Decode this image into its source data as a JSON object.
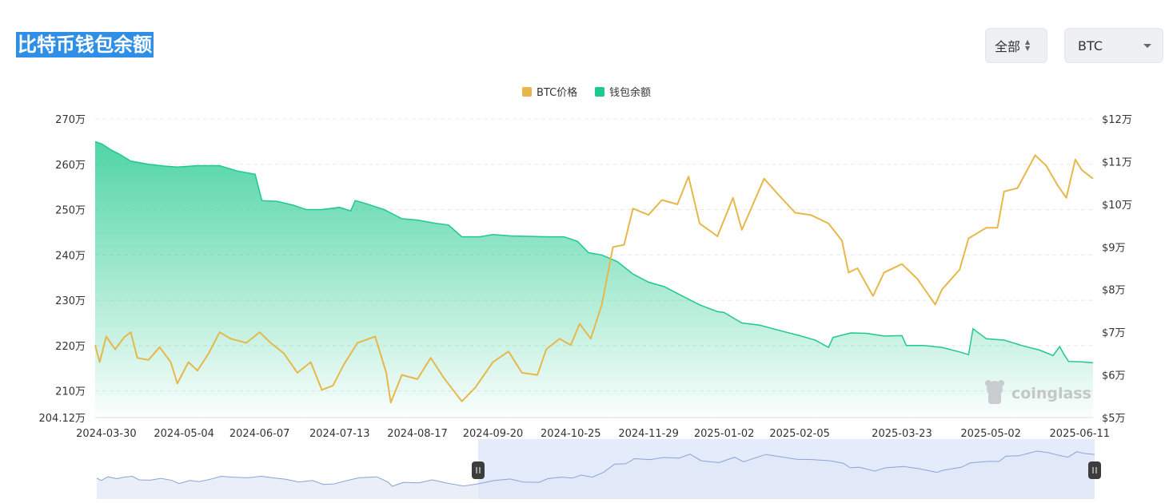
{
  "page": {
    "title": "比特币钱包余额",
    "range_select": {
      "value": "全部"
    },
    "coin_select": {
      "value": "BTC"
    },
    "watermark": "coinglass"
  },
  "colors": {
    "price": "#e6b84a",
    "balance": "#1ec98b",
    "title_bg": "#2f8fe6",
    "navigator_fill": "#dbe5fb"
  },
  "chart_data": {
    "type": "area",
    "legend": [
      "BTC价格",
      "钱包余额"
    ],
    "legend_position": "top-center",
    "grid": true,
    "x_ticks": [
      "2024-03-30",
      "2024-05-04",
      "2024-06-07",
      "2024-07-13",
      "2024-08-17",
      "2024-09-20",
      "2024-10-25",
      "2024-11-29",
      "2025-01-02",
      "2025-02-05",
      "2025-03-23",
      "2025-05-02",
      "2025-06-11"
    ],
    "y_left": {
      "ticks": [
        "270万",
        "260万",
        "250万",
        "240万",
        "230万",
        "220万",
        "210万",
        "204.12万"
      ],
      "min": 2041200,
      "max": 2700000
    },
    "y_right": {
      "ticks": [
        "$12万",
        "$11万",
        "$10万",
        "$9万",
        "$8万",
        "$7万",
        "$6万",
        "$5万"
      ],
      "min": 50000,
      "max": 120000
    },
    "x_range": [
      "2024-03-25",
      "2025-06-17"
    ],
    "series": [
      {
        "name": "钱包余额",
        "type": "area",
        "axis": "left",
        "points": [
          [
            "2024-03-25",
            2650000
          ],
          [
            "2024-03-28",
            2645000
          ],
          [
            "2024-04-01",
            2632000
          ],
          [
            "2024-04-05",
            2622000
          ],
          [
            "2024-04-10",
            2607000
          ],
          [
            "2024-04-18",
            2600000
          ],
          [
            "2024-04-25",
            2596000
          ],
          [
            "2024-05-01",
            2594000
          ],
          [
            "2024-05-10",
            2597000
          ],
          [
            "2024-05-20",
            2597000
          ],
          [
            "2024-05-28",
            2585000
          ],
          [
            "2024-06-05",
            2578000
          ],
          [
            "2024-06-08",
            2520000
          ],
          [
            "2024-06-15",
            2518000
          ],
          [
            "2024-06-22",
            2510000
          ],
          [
            "2024-06-28",
            2500000
          ],
          [
            "2024-07-05",
            2500000
          ],
          [
            "2024-07-13",
            2505000
          ],
          [
            "2024-07-18",
            2497000
          ],
          [
            "2024-07-20",
            2520000
          ],
          [
            "2024-07-25",
            2513000
          ],
          [
            "2024-08-02",
            2500000
          ],
          [
            "2024-08-10",
            2480000
          ],
          [
            "2024-08-17",
            2477000
          ],
          [
            "2024-08-25",
            2470000
          ],
          [
            "2024-08-31",
            2466000
          ],
          [
            "2024-09-06",
            2440000
          ],
          [
            "2024-09-14",
            2440000
          ],
          [
            "2024-09-20",
            2445000
          ],
          [
            "2024-09-28",
            2442000
          ],
          [
            "2024-10-05",
            2441000
          ],
          [
            "2024-10-15",
            2440000
          ],
          [
            "2024-10-22",
            2440000
          ],
          [
            "2024-10-28",
            2430000
          ],
          [
            "2024-11-02",
            2405000
          ],
          [
            "2024-11-08",
            2400000
          ],
          [
            "2024-11-15",
            2385000
          ],
          [
            "2024-11-22",
            2358000
          ],
          [
            "2024-11-29",
            2340000
          ],
          [
            "2024-12-06",
            2330000
          ],
          [
            "2024-12-14",
            2310000
          ],
          [
            "2024-12-22",
            2290000
          ],
          [
            "2024-12-30",
            2275000
          ],
          [
            "2025-01-02",
            2273000
          ],
          [
            "2025-01-10",
            2250000
          ],
          [
            "2025-01-18",
            2245000
          ],
          [
            "2025-01-28",
            2232000
          ],
          [
            "2025-02-05",
            2222000
          ],
          [
            "2025-02-12",
            2212000
          ],
          [
            "2025-02-18",
            2196000
          ],
          [
            "2025-02-20",
            2218000
          ],
          [
            "2025-02-28",
            2228000
          ],
          [
            "2025-03-07",
            2227000
          ],
          [
            "2025-03-15",
            2221000
          ],
          [
            "2025-03-23",
            2222000
          ],
          [
            "2025-03-25",
            2200000
          ],
          [
            "2025-04-02",
            2200000
          ],
          [
            "2025-04-10",
            2196000
          ],
          [
            "2025-04-18",
            2186000
          ],
          [
            "2025-04-22",
            2180000
          ],
          [
            "2025-04-24",
            2237000
          ],
          [
            "2025-04-30",
            2215000
          ],
          [
            "2025-05-08",
            2212000
          ],
          [
            "2025-05-16",
            2200000
          ],
          [
            "2025-05-24",
            2190000
          ],
          [
            "2025-05-30",
            2178000
          ],
          [
            "2025-06-02",
            2198000
          ],
          [
            "2025-06-04",
            2180000
          ],
          [
            "2025-06-06",
            2165000
          ],
          [
            "2025-06-12",
            2164000
          ],
          [
            "2025-06-17",
            2162000
          ]
        ]
      },
      {
        "name": "BTC价格",
        "type": "line",
        "axis": "right",
        "points": [
          [
            "2024-03-25",
            67000
          ],
          [
            "2024-03-27",
            63000
          ],
          [
            "2024-03-30",
            69000
          ],
          [
            "2024-04-03",
            66000
          ],
          [
            "2024-04-07",
            68800
          ],
          [
            "2024-04-10",
            70000
          ],
          [
            "2024-04-13",
            64000
          ],
          [
            "2024-04-18",
            63500
          ],
          [
            "2024-04-23",
            66500
          ],
          [
            "2024-04-28",
            63000
          ],
          [
            "2024-05-01",
            58000
          ],
          [
            "2024-05-06",
            63000
          ],
          [
            "2024-05-10",
            61000
          ],
          [
            "2024-05-15",
            65000
          ],
          [
            "2024-05-20",
            70000
          ],
          [
            "2024-05-25",
            68500
          ],
          [
            "2024-06-01",
            67500
          ],
          [
            "2024-06-07",
            70000
          ],
          [
            "2024-06-12",
            67500
          ],
          [
            "2024-06-18",
            65000
          ],
          [
            "2024-06-24",
            60500
          ],
          [
            "2024-06-30",
            63000
          ],
          [
            "2024-07-05",
            56500
          ],
          [
            "2024-07-10",
            57500
          ],
          [
            "2024-07-15",
            62500
          ],
          [
            "2024-07-21",
            67500
          ],
          [
            "2024-07-29",
            69000
          ],
          [
            "2024-08-03",
            60500
          ],
          [
            "2024-08-05",
            53500
          ],
          [
            "2024-08-10",
            60000
          ],
          [
            "2024-08-17",
            59000
          ],
          [
            "2024-08-23",
            64000
          ],
          [
            "2024-08-29",
            59200
          ],
          [
            "2024-09-06",
            53800
          ],
          [
            "2024-09-12",
            57000
          ],
          [
            "2024-09-20",
            63000
          ],
          [
            "2024-09-27",
            65500
          ],
          [
            "2024-10-03",
            60500
          ],
          [
            "2024-10-10",
            60000
          ],
          [
            "2024-10-14",
            66000
          ],
          [
            "2024-10-20",
            68500
          ],
          [
            "2024-10-25",
            67000
          ],
          [
            "2024-10-29",
            72000
          ],
          [
            "2024-11-03",
            68500
          ],
          [
            "2024-11-08",
            76500
          ],
          [
            "2024-11-13",
            90000
          ],
          [
            "2024-11-18",
            90500
          ],
          [
            "2024-11-22",
            99000
          ],
          [
            "2024-11-29",
            97500
          ],
          [
            "2024-12-05",
            101000
          ],
          [
            "2024-12-12",
            100000
          ],
          [
            "2024-12-17",
            106500
          ],
          [
            "2024-12-22",
            95500
          ],
          [
            "2024-12-30",
            92500
          ],
          [
            "2025-01-06",
            101500
          ],
          [
            "2025-01-10",
            94000
          ],
          [
            "2025-01-20",
            106000
          ],
          [
            "2025-01-26",
            102500
          ],
          [
            "2025-02-03",
            98000
          ],
          [
            "2025-02-10",
            97500
          ],
          [
            "2025-02-18",
            95500
          ],
          [
            "2025-02-24",
            91500
          ],
          [
            "2025-02-27",
            84000
          ],
          [
            "2025-03-03",
            85000
          ],
          [
            "2025-03-10",
            78500
          ],
          [
            "2025-03-15",
            84000
          ],
          [
            "2025-03-23",
            86000
          ],
          [
            "2025-03-30",
            82500
          ],
          [
            "2025-04-07",
            76500
          ],
          [
            "2025-04-10",
            80000
          ],
          [
            "2025-04-18",
            84700
          ],
          [
            "2025-04-22",
            92000
          ],
          [
            "2025-04-30",
            94500
          ],
          [
            "2025-05-05",
            94500
          ],
          [
            "2025-05-08",
            103000
          ],
          [
            "2025-05-14",
            103800
          ],
          [
            "2025-05-22",
            111500
          ],
          [
            "2025-05-27",
            109000
          ],
          [
            "2025-06-01",
            104500
          ],
          [
            "2025-06-05",
            101500
          ],
          [
            "2025-06-09",
            110500
          ],
          [
            "2025-06-12",
            108000
          ],
          [
            "2025-06-17",
            106000
          ]
        ]
      }
    ]
  }
}
